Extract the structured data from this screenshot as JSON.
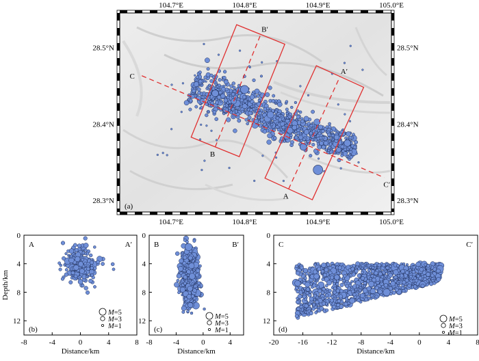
{
  "chart_data": [
    {
      "panel": "(a)",
      "type": "scatter",
      "subtype": "map",
      "x_ticks": [
        "104.7°E",
        "104.8°E",
        "104.9°E",
        "105.0°E"
      ],
      "y_ticks": [
        "28.5°N",
        "28.4°N",
        "28.3°N"
      ],
      "xlim": [
        104.63,
        105.0
      ],
      "ylim": [
        28.285,
        28.545
      ],
      "background": "grey shaded relief",
      "event_color": "#6f8fd8",
      "fault_trace_color": "#e03030",
      "profile_box_color": "#e03030",
      "profiles": [
        {
          "start": "A",
          "end": "A′",
          "start_lonlat": [
            104.86,
            28.315
          ],
          "end_lonlat": [
            104.93,
            28.462
          ]
        },
        {
          "start": "B",
          "end": "B′",
          "start_lonlat": [
            104.76,
            28.37
          ],
          "end_lonlat": [
            104.822,
            28.517
          ]
        },
        {
          "start": "C",
          "end": "C′",
          "start_lonlat": [
            104.66,
            28.463
          ],
          "end_lonlat": [
            104.99,
            28.33
          ]
        }
      ],
      "events_trend": {
        "from": [
          104.73,
          28.45
        ],
        "to": [
          104.95,
          28.365
        ]
      }
    },
    {
      "panel": "(b)",
      "type": "scatter",
      "title_left": "A",
      "title_right": "A′",
      "xlabel": "Distance/km",
      "ylabel": "Depth/km",
      "x_ticks": [
        -8,
        -4,
        0,
        4,
        8
      ],
      "y_ticks": [
        0,
        4,
        8,
        12
      ],
      "xlim": [
        -8,
        8
      ],
      "ylim": [
        0,
        14
      ],
      "y_inverted": true,
      "cluster": {
        "x_center": 0,
        "x_spread": 2,
        "depth_center": 4.2,
        "depth_spread": 1.5
      }
    },
    {
      "panel": "(c)",
      "type": "scatter",
      "title_left": "B",
      "title_right": "B′",
      "xlabel": "Distance/km",
      "x_ticks": [
        -8,
        -4,
        0,
        4
      ],
      "y_ticks": [
        0,
        4,
        8,
        12
      ],
      "xlim": [
        -8,
        6
      ],
      "ylim": [
        0,
        14
      ],
      "y_inverted": true,
      "cluster": {
        "x_center": -2,
        "x_spread": 1,
        "depth_center": 6,
        "depth_spread": 2.5
      }
    },
    {
      "panel": "(d)",
      "type": "scatter",
      "title_left": "C",
      "title_right": "C′",
      "xlabel": "Distance/km",
      "x_ticks": [
        -20,
        -16,
        -12,
        -8,
        -4,
        0,
        4,
        8
      ],
      "y_ticks": [
        0,
        4,
        8,
        12
      ],
      "xlim": [
        -20,
        8
      ],
      "ylim": [
        0,
        14
      ],
      "y_inverted": true,
      "cluster": {
        "x_range": [
          -17,
          3
        ],
        "depth_top": [
          3,
          8
        ],
        "depth_bottom": [
          9,
          5
        ]
      }
    }
  ],
  "legend": {
    "prefix": "M",
    "items": [
      "=5",
      "=3",
      "=1"
    ],
    "magnitudes": [
      5,
      3,
      1
    ]
  }
}
